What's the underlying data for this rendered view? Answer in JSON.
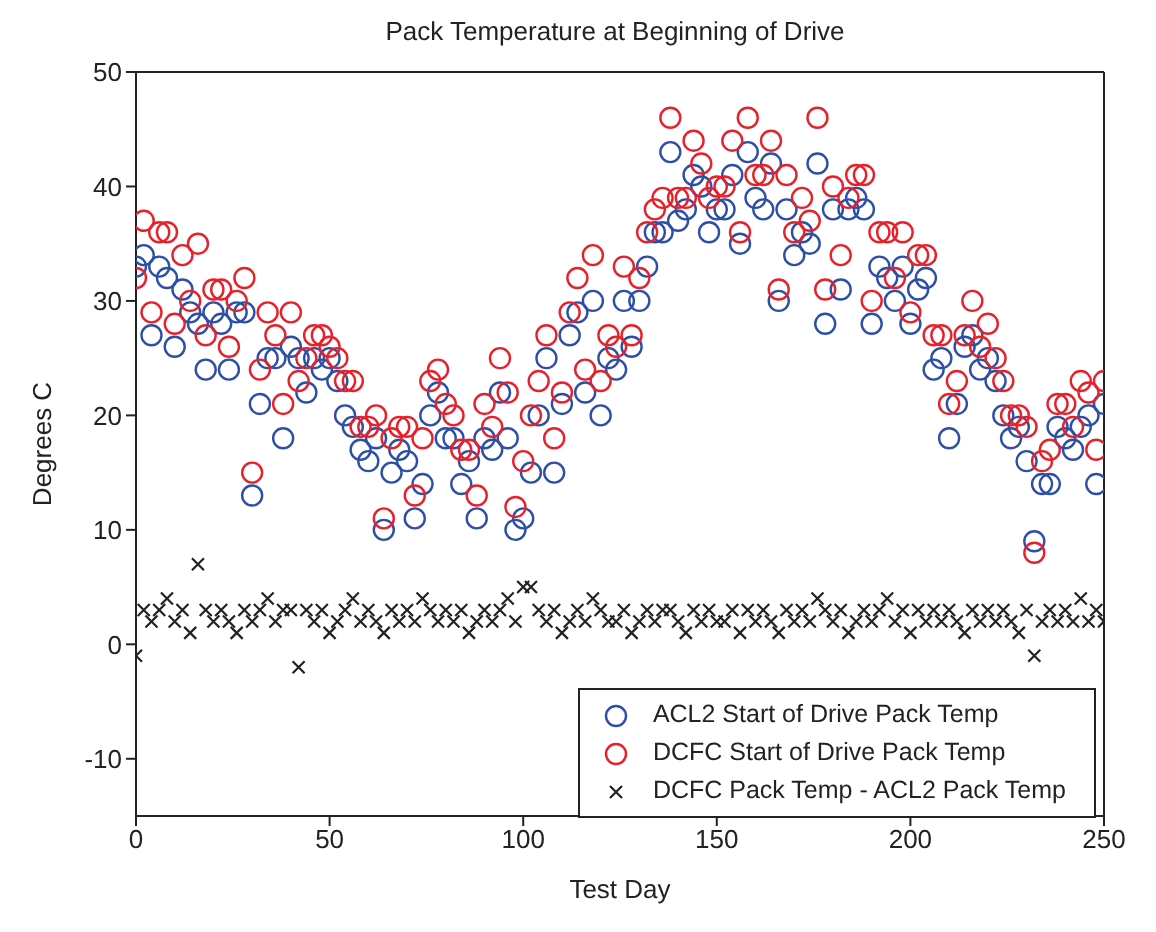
{
  "chart_data": {
    "type": "scatter",
    "title": "Pack Temperature at Beginning of Drive",
    "xlabel": "Test Day",
    "ylabel": "Degrees C",
    "x": [
      0,
      2,
      4,
      6,
      8,
      10,
      12,
      14,
      16,
      18,
      20,
      22,
      24,
      26,
      28,
      30,
      32,
      34,
      36,
      38,
      40,
      42,
      44,
      46,
      48,
      50,
      52,
      54,
      56,
      58,
      60,
      62,
      64,
      66,
      68,
      70,
      72,
      74,
      76,
      78,
      80,
      82,
      84,
      86,
      88,
      90,
      92,
      94,
      96,
      98,
      100,
      102,
      104,
      106,
      108,
      110,
      112,
      114,
      116,
      118,
      120,
      122,
      124,
      126,
      128,
      130,
      132,
      134,
      136,
      138,
      140,
      142,
      144,
      146,
      148,
      150,
      152,
      154,
      156,
      158,
      160,
      162,
      164,
      166,
      168,
      170,
      172,
      174,
      176,
      178,
      180,
      182,
      184,
      186,
      188,
      190,
      192,
      194,
      196,
      198,
      200,
      202,
      204,
      206,
      208,
      210,
      212,
      214,
      216,
      218,
      220,
      222,
      224,
      226,
      228,
      230,
      232,
      234,
      236,
      238,
      240,
      242,
      244,
      246,
      248,
      250
    ],
    "series": [
      {
        "name": "ACL2 Start of Drive Pack Temp",
        "color": "#2e4fa8",
        "marker": "circle",
        "values": [
          33,
          34,
          27,
          33,
          32,
          26,
          31,
          29,
          28,
          24,
          29,
          28,
          24,
          29,
          29,
          13,
          21,
          25,
          25,
          18,
          26,
          25,
          22,
          25,
          24,
          25,
          23,
          20,
          19,
          17,
          16,
          18,
          10,
          15,
          17,
          16,
          11,
          14,
          20,
          22,
          18,
          18,
          14,
          16,
          11,
          18,
          17,
          22,
          18,
          10,
          11,
          15,
          20,
          25,
          15,
          21,
          27,
          29,
          22,
          30,
          20,
          25,
          24,
          30,
          26,
          30,
          33,
          36,
          36,
          43,
          37,
          38,
          41,
          40,
          36,
          38,
          38,
          41,
          35,
          43,
          39,
          38,
          42,
          30,
          38,
          34,
          36,
          35,
          42,
          28,
          38,
          31,
          38,
          39,
          38,
          28,
          33,
          32,
          30,
          33,
          28,
          31,
          32,
          24,
          25,
          18,
          21,
          26,
          27,
          24,
          25,
          23,
          20,
          18,
          19,
          16,
          9,
          14,
          14,
          19,
          18,
          17,
          19,
          20,
          14,
          21
        ]
      },
      {
        "name": "DCFC Start of Drive Pack Temp",
        "color": "#e8202a",
        "marker": "circle",
        "values": [
          32,
          37,
          29,
          36,
          36,
          28,
          34,
          30,
          35,
          27,
          31,
          31,
          26,
          30,
          32,
          15,
          24,
          29,
          27,
          21,
          29,
          23,
          25,
          27,
          27,
          26,
          25,
          23,
          23,
          19,
          19,
          20,
          11,
          18,
          19,
          19,
          13,
          18,
          23,
          24,
          21,
          20,
          17,
          17,
          13,
          21,
          19,
          25,
          22,
          12,
          16,
          20,
          23,
          27,
          18,
          22,
          29,
          32,
          24,
          34,
          23,
          27,
          26,
          33,
          27,
          32,
          36,
          38,
          39,
          46,
          39,
          39,
          44,
          42,
          39,
          40,
          40,
          44,
          36,
          46,
          41,
          41,
          44,
          31,
          41,
          36,
          39,
          37,
          46,
          31,
          40,
          34,
          39,
          41,
          41,
          30,
          36,
          36,
          32,
          36,
          29,
          34,
          34,
          27,
          27,
          21,
          23,
          27,
          30,
          26,
          28,
          25,
          23,
          20,
          20,
          19,
          8,
          16,
          17,
          21,
          21,
          19,
          23,
          22,
          17,
          23
        ]
      },
      {
        "name": "DCFC Pack Temp - ACL2 Pack Temp",
        "color": "#222222",
        "marker": "cross",
        "values": [
          -1,
          3,
          2,
          3,
          4,
          2,
          3,
          1,
          7,
          3,
          2,
          3,
          2,
          1,
          3,
          2,
          3,
          4,
          2,
          3,
          3,
          -2,
          3,
          2,
          3,
          1,
          2,
          3,
          4,
          2,
          3,
          2,
          1,
          3,
          2,
          3,
          2,
          4,
          3,
          2,
          3,
          2,
          3,
          1,
          2,
          3,
          2,
          3,
          4,
          2,
          5,
          5,
          3,
          2,
          3,
          1,
          2,
          3,
          2,
          4,
          3,
          2,
          2,
          3,
          1,
          2,
          3,
          2,
          3,
          3,
          2,
          1,
          3,
          2,
          3,
          2,
          2,
          3,
          1,
          3,
          2,
          3,
          2,
          1,
          3,
          2,
          3,
          2,
          4,
          3,
          2,
          3,
          1,
          2,
          3,
          2,
          3,
          4,
          2,
          3,
          1,
          3,
          2,
          3,
          2,
          3,
          2,
          1,
          3,
          2,
          3,
          2,
          3,
          2,
          1,
          3,
          -1,
          2,
          3,
          2,
          3,
          2,
          4,
          2,
          3,
          2
        ]
      }
    ],
    "xlim": [
      0,
      250
    ],
    "xticks": [
      0,
      50,
      100,
      150,
      200,
      250
    ],
    "ylim": [
      -15,
      50
    ],
    "yticks": [
      -10,
      0,
      10,
      20,
      30,
      40,
      50
    ],
    "legend": "bottom right"
  }
}
